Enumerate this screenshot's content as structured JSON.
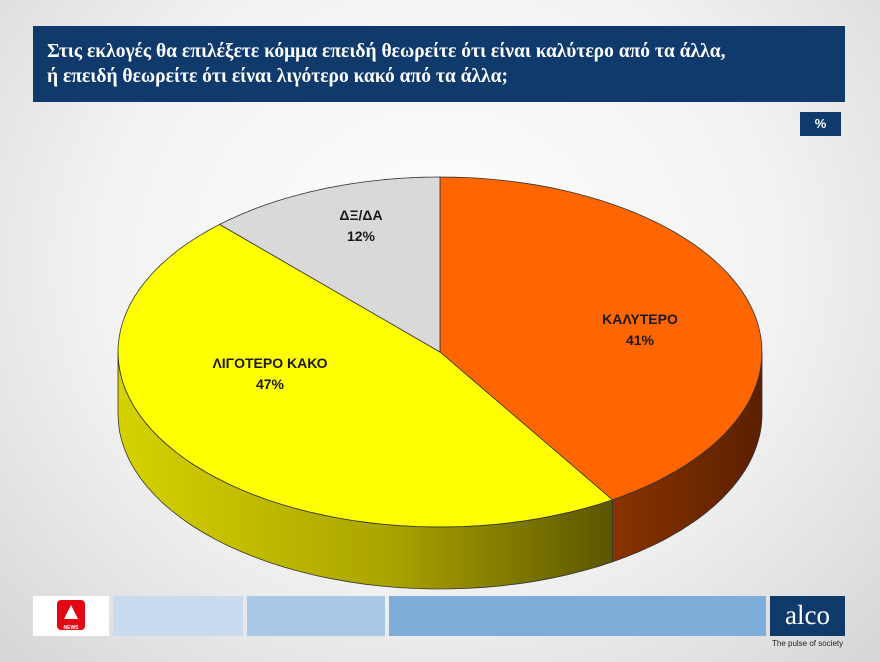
{
  "header": {
    "title_line1": "Στις εκλογές θα επιλέξετε κόμμα επειδή θεωρείτε ότι είναι καλύτερο από τα άλλα,",
    "title_line2": "ή επειδή θεωρείτε ότι είναι λιγότερο κακό από τα άλλα;",
    "unit": "%"
  },
  "chart_data": {
    "type": "pie",
    "title": "Στις εκλογές θα επιλέξετε κόμμα επειδή θεωρείτε ότι είναι καλύτερο από τα άλλα, ή επειδή θεωρείτε ότι είναι λιγότερο κακό από τα άλλα;",
    "unit": "%",
    "labels": [
      "ΚΑΛΥΤΕΡΟ",
      "ΛΙΓΟΤΕΡΟ ΚΑΚΟ",
      "ΔΞ/ΔΑ"
    ],
    "values": [
      41,
      47,
      12
    ],
    "value_labels": [
      "41%",
      "47%",
      "12%"
    ],
    "colors": [
      "#ff6600",
      "#ffff00",
      "#d9d9d9"
    ],
    "legend": "none"
  },
  "footer": {
    "left_logo_text": "NEWS",
    "brand": "alco",
    "tagline": "The pulse of society"
  }
}
